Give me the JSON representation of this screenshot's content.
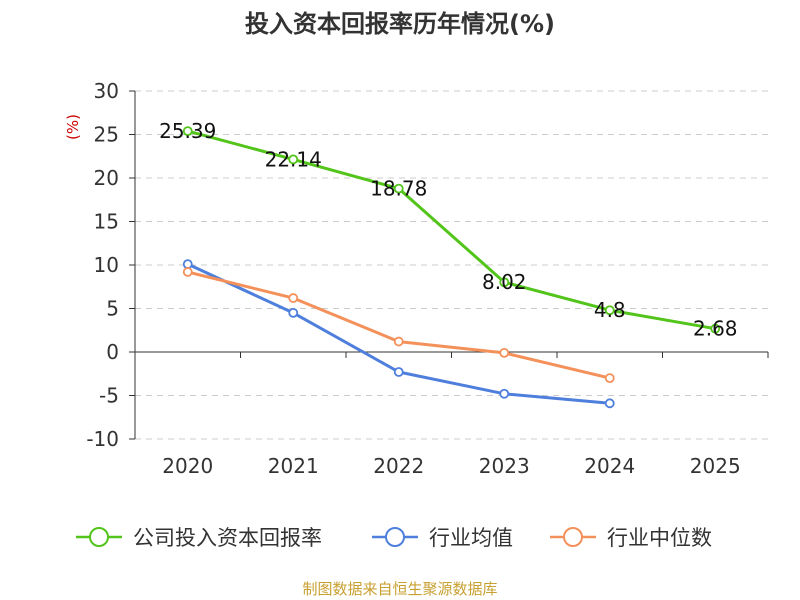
{
  "chart_data": {
    "type": "line",
    "title": "投入资本回报率历年情况(%)",
    "unit": "(%)",
    "categories": [
      "2020",
      "2021",
      "2022",
      "2023",
      "2024",
      "2025"
    ],
    "ylim": [
      -10,
      30
    ],
    "yticks": [
      "30",
      "25",
      "20",
      "15",
      "10",
      "5",
      "0",
      "-5",
      "-10"
    ],
    "grid": true,
    "legend_position": "bottom",
    "series": [
      {
        "name": "公司投入资本回报率",
        "color": "#52c41a",
        "values": [
          25.39,
          22.14,
          18.78,
          8.02,
          4.8,
          2.68
        ],
        "labels": [
          "25.39",
          "22.14",
          "18.78",
          "8.02",
          "4.8",
          "2.68"
        ]
      },
      {
        "name": "行业均值",
        "color": "#4f7fdc",
        "values": [
          10.1,
          4.5,
          -2.3,
          -4.8,
          -5.9,
          null
        ]
      },
      {
        "name": "行业中位数",
        "color": "#f4915a",
        "values": [
          9.2,
          6.2,
          1.2,
          -0.1,
          -3.0,
          null
        ]
      }
    ],
    "source": "制图数据来自恒生聚源数据库"
  }
}
